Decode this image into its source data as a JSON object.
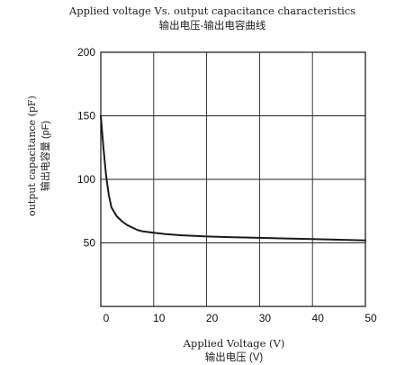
{
  "chart_data": {
    "type": "line",
    "title": "Applied voltage Vs. output capacitance characteristics",
    "subtitle": "输出电压-输出电容曲线",
    "xlabel": "Applied Voltage (V)",
    "xlabel_cn": "输出电压 (V)",
    "ylabel": "output capacitance (pF)",
    "ylabel_cn": "输出电容量 (pF)",
    "xlim": [
      0,
      50
    ],
    "ylim": [
      0,
      200
    ],
    "xticks": [
      0,
      10,
      20,
      30,
      40,
      50
    ],
    "yticks": [
      50,
      100,
      150,
      200
    ],
    "grid": true,
    "series": [
      {
        "color": "#1a1a1a",
        "x": [
          0,
          0.5,
          1,
          1.5,
          2,
          3,
          4,
          5,
          6,
          7,
          8,
          10,
          12,
          15,
          20,
          25,
          30,
          35,
          40,
          45,
          50
        ],
        "y": [
          150,
          125,
          103,
          88,
          78,
          71,
          67,
          64,
          62,
          60,
          59,
          58,
          57,
          56,
          55,
          54.5,
          54,
          53.5,
          53,
          52.5,
          52
        ]
      }
    ]
  }
}
